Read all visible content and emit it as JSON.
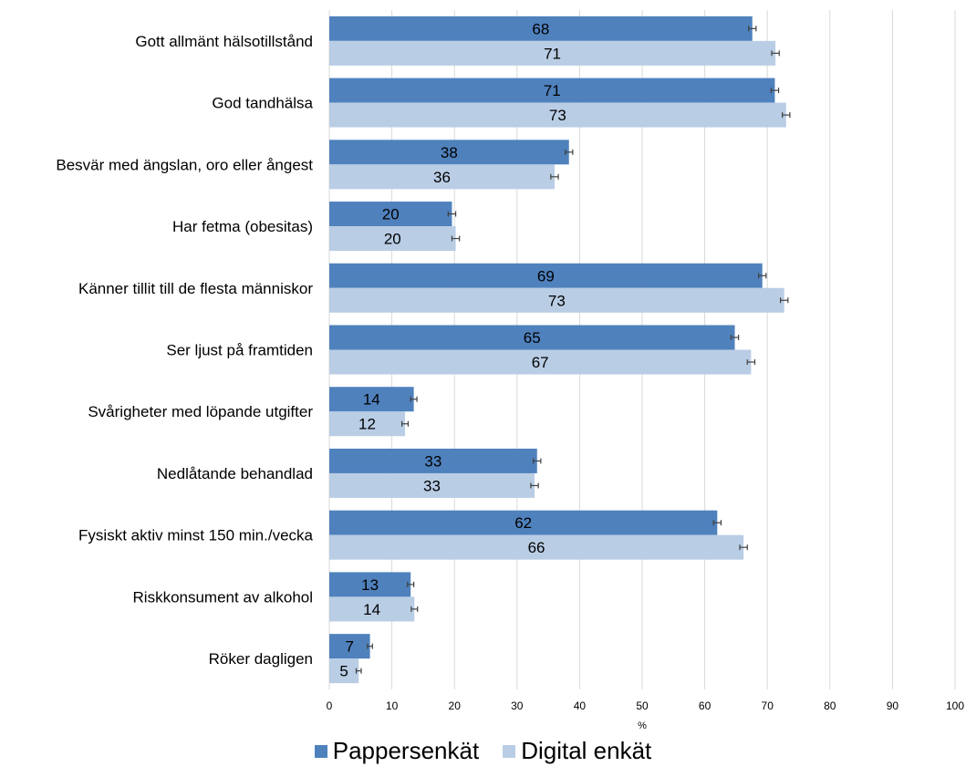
{
  "chart_data": {
    "type": "bar",
    "orientation": "horizontal",
    "categories": [
      "Gott allmänt hälsotillstånd",
      "God tandhälsa",
      "Besvär med ängslan, oro eller ångest",
      "Har fetma (obesitas)",
      "Känner tillit till de flesta människor",
      "Ser ljust på framtiden",
      "Svårigheter med löpande utgifter",
      "Nedlåtande behandlad",
      "Fysiskt aktiv minst 150 min./vecka",
      "Riskkonsument av alkohol",
      "Röker dagligen"
    ],
    "series": [
      {
        "name": "Pappersenkät",
        "color": "#4f81bd",
        "values": [
          67.6,
          71.2,
          38.3,
          19.6,
          69.2,
          64.8,
          13.5,
          33.2,
          62.0,
          13.0,
          6.5
        ],
        "labels": [
          "68",
          "71",
          "38",
          "20",
          "69",
          "65",
          "14",
          "33",
          "62",
          "13",
          "7"
        ],
        "error": [
          0.6,
          0.6,
          0.6,
          0.6,
          0.6,
          0.6,
          0.5,
          0.6,
          0.6,
          0.5,
          0.4
        ]
      },
      {
        "name": "Digital enkät",
        "color": "#b9cde5",
        "values": [
          71.3,
          73.0,
          36.0,
          20.2,
          72.7,
          67.4,
          12.1,
          32.8,
          66.2,
          13.6,
          4.7
        ],
        "labels": [
          "71",
          "73",
          "36",
          "20",
          "73",
          "67",
          "12",
          "33",
          "66",
          "14",
          "5"
        ],
        "error": [
          0.6,
          0.6,
          0.6,
          0.6,
          0.6,
          0.6,
          0.5,
          0.6,
          0.6,
          0.5,
          0.4
        ]
      }
    ],
    "x_ticks": [
      0,
      10,
      20,
      30,
      40,
      50,
      60,
      70,
      80,
      90,
      100
    ],
    "xlim": [
      0,
      100
    ],
    "xlabel": "%",
    "ylabel": "",
    "title": "",
    "grid": true,
    "legend_position": "bottom"
  }
}
